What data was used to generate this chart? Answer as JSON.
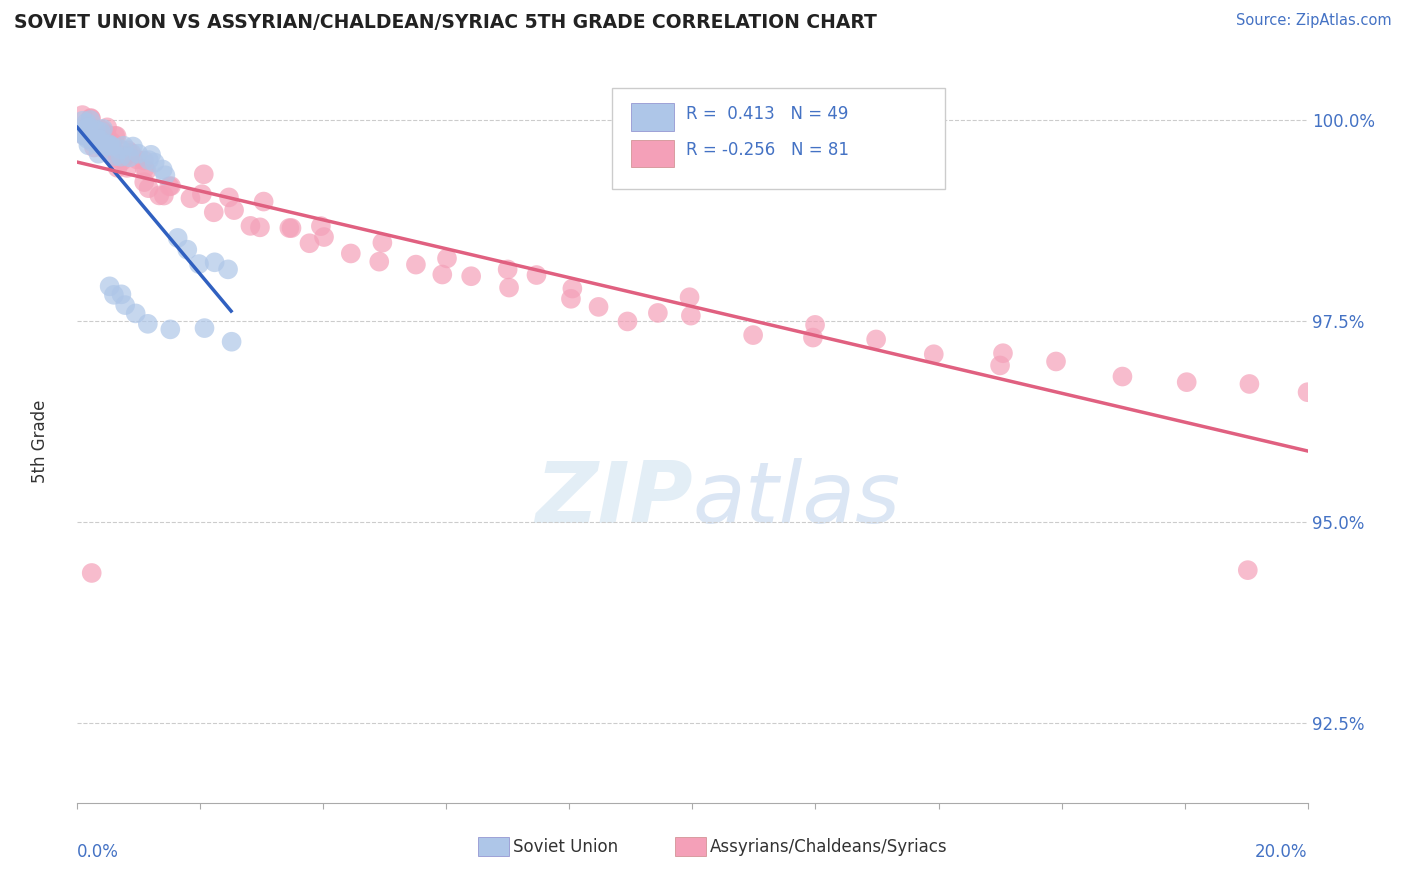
{
  "title": "SOVIET UNION VS ASSYRIAN/CHALDEAN/SYRIAC 5TH GRADE CORRELATION CHART",
  "source": "Source: ZipAtlas.com",
  "ylabel": "5th Grade",
  "xlim": [
    0.0,
    0.2
  ],
  "ylim": [
    0.915,
    1.005
  ],
  "yticks": [
    0.925,
    0.95,
    0.975,
    1.0
  ],
  "ytick_labels": [
    "92.5%",
    "95.0%",
    "97.5%",
    "100.0%"
  ],
  "blue_R": 0.413,
  "blue_N": 49,
  "pink_R": -0.256,
  "pink_N": 81,
  "blue_color": "#aec6e8",
  "pink_color": "#f4a0b8",
  "blue_line_color": "#3060c0",
  "pink_line_color": "#e06080",
  "legend_blue_label": "Soviet Union",
  "legend_pink_label": "Assyrians/Chaldeans/Syriacs",
  "blue_x": [
    0.001,
    0.001,
    0.001,
    0.002,
    0.002,
    0.002,
    0.003,
    0.003,
    0.003,
    0.004,
    0.004,
    0.004,
    0.005,
    0.005,
    0.005,
    0.006,
    0.006,
    0.007,
    0.007,
    0.008,
    0.008,
    0.009,
    0.01,
    0.011,
    0.012,
    0.013,
    0.014,
    0.015,
    0.016,
    0.018,
    0.02,
    0.022,
    0.025,
    0.001,
    0.001,
    0.002,
    0.002,
    0.003,
    0.003,
    0.004,
    0.005,
    0.006,
    0.007,
    0.008,
    0.01,
    0.012,
    0.015,
    0.02,
    0.025
  ],
  "blue_y": [
    1.0,
    0.999,
    0.998,
    1.0,
    0.999,
    0.998,
    0.999,
    0.998,
    0.997,
    0.999,
    0.998,
    0.997,
    0.998,
    0.997,
    0.996,
    0.997,
    0.996,
    0.997,
    0.996,
    0.997,
    0.996,
    0.996,
    0.996,
    0.995,
    0.995,
    0.994,
    0.994,
    0.993,
    0.985,
    0.984,
    0.983,
    0.982,
    0.981,
    0.998,
    0.999,
    0.997,
    0.998,
    0.996,
    0.997,
    0.996,
    0.979,
    0.978,
    0.978,
    0.977,
    0.976,
    0.975,
    0.974,
    0.973,
    0.972
  ],
  "pink_x": [
    0.001,
    0.001,
    0.001,
    0.002,
    0.002,
    0.002,
    0.003,
    0.003,
    0.003,
    0.004,
    0.004,
    0.005,
    0.005,
    0.006,
    0.006,
    0.007,
    0.007,
    0.008,
    0.008,
    0.009,
    0.01,
    0.01,
    0.011,
    0.012,
    0.013,
    0.014,
    0.015,
    0.018,
    0.02,
    0.022,
    0.025,
    0.028,
    0.03,
    0.035,
    0.038,
    0.04,
    0.045,
    0.05,
    0.055,
    0.06,
    0.065,
    0.07,
    0.075,
    0.08,
    0.085,
    0.09,
    0.095,
    0.1,
    0.11,
    0.12,
    0.13,
    0.14,
    0.15,
    0.16,
    0.17,
    0.18,
    0.19,
    0.2,
    0.003,
    0.004,
    0.005,
    0.006,
    0.007,
    0.008,
    0.01,
    0.012,
    0.015,
    0.02,
    0.025,
    0.03,
    0.035,
    0.04,
    0.05,
    0.06,
    0.07,
    0.08,
    0.1,
    0.12,
    0.15,
    0.19,
    0.003
  ],
  "pink_y": [
    1.0,
    0.999,
    0.998,
    1.0,
    0.999,
    0.998,
    0.999,
    0.998,
    0.997,
    0.999,
    0.998,
    0.998,
    0.997,
    0.997,
    0.996,
    0.997,
    0.996,
    0.996,
    0.995,
    0.995,
    0.995,
    0.994,
    0.994,
    0.993,
    0.992,
    0.991,
    0.991,
    0.99,
    0.99,
    0.989,
    0.989,
    0.988,
    0.987,
    0.986,
    0.985,
    0.985,
    0.984,
    0.983,
    0.982,
    0.981,
    0.98,
    0.979,
    0.979,
    0.978,
    0.977,
    0.976,
    0.976,
    0.975,
    0.974,
    0.973,
    0.972,
    0.971,
    0.97,
    0.969,
    0.968,
    0.967,
    0.966,
    0.965,
    0.998,
    0.997,
    0.997,
    0.996,
    0.996,
    0.995,
    0.994,
    0.993,
    0.993,
    0.992,
    0.991,
    0.99,
    0.988,
    0.987,
    0.985,
    0.983,
    0.981,
    0.979,
    0.977,
    0.975,
    0.972,
    0.944,
    0.943
  ]
}
